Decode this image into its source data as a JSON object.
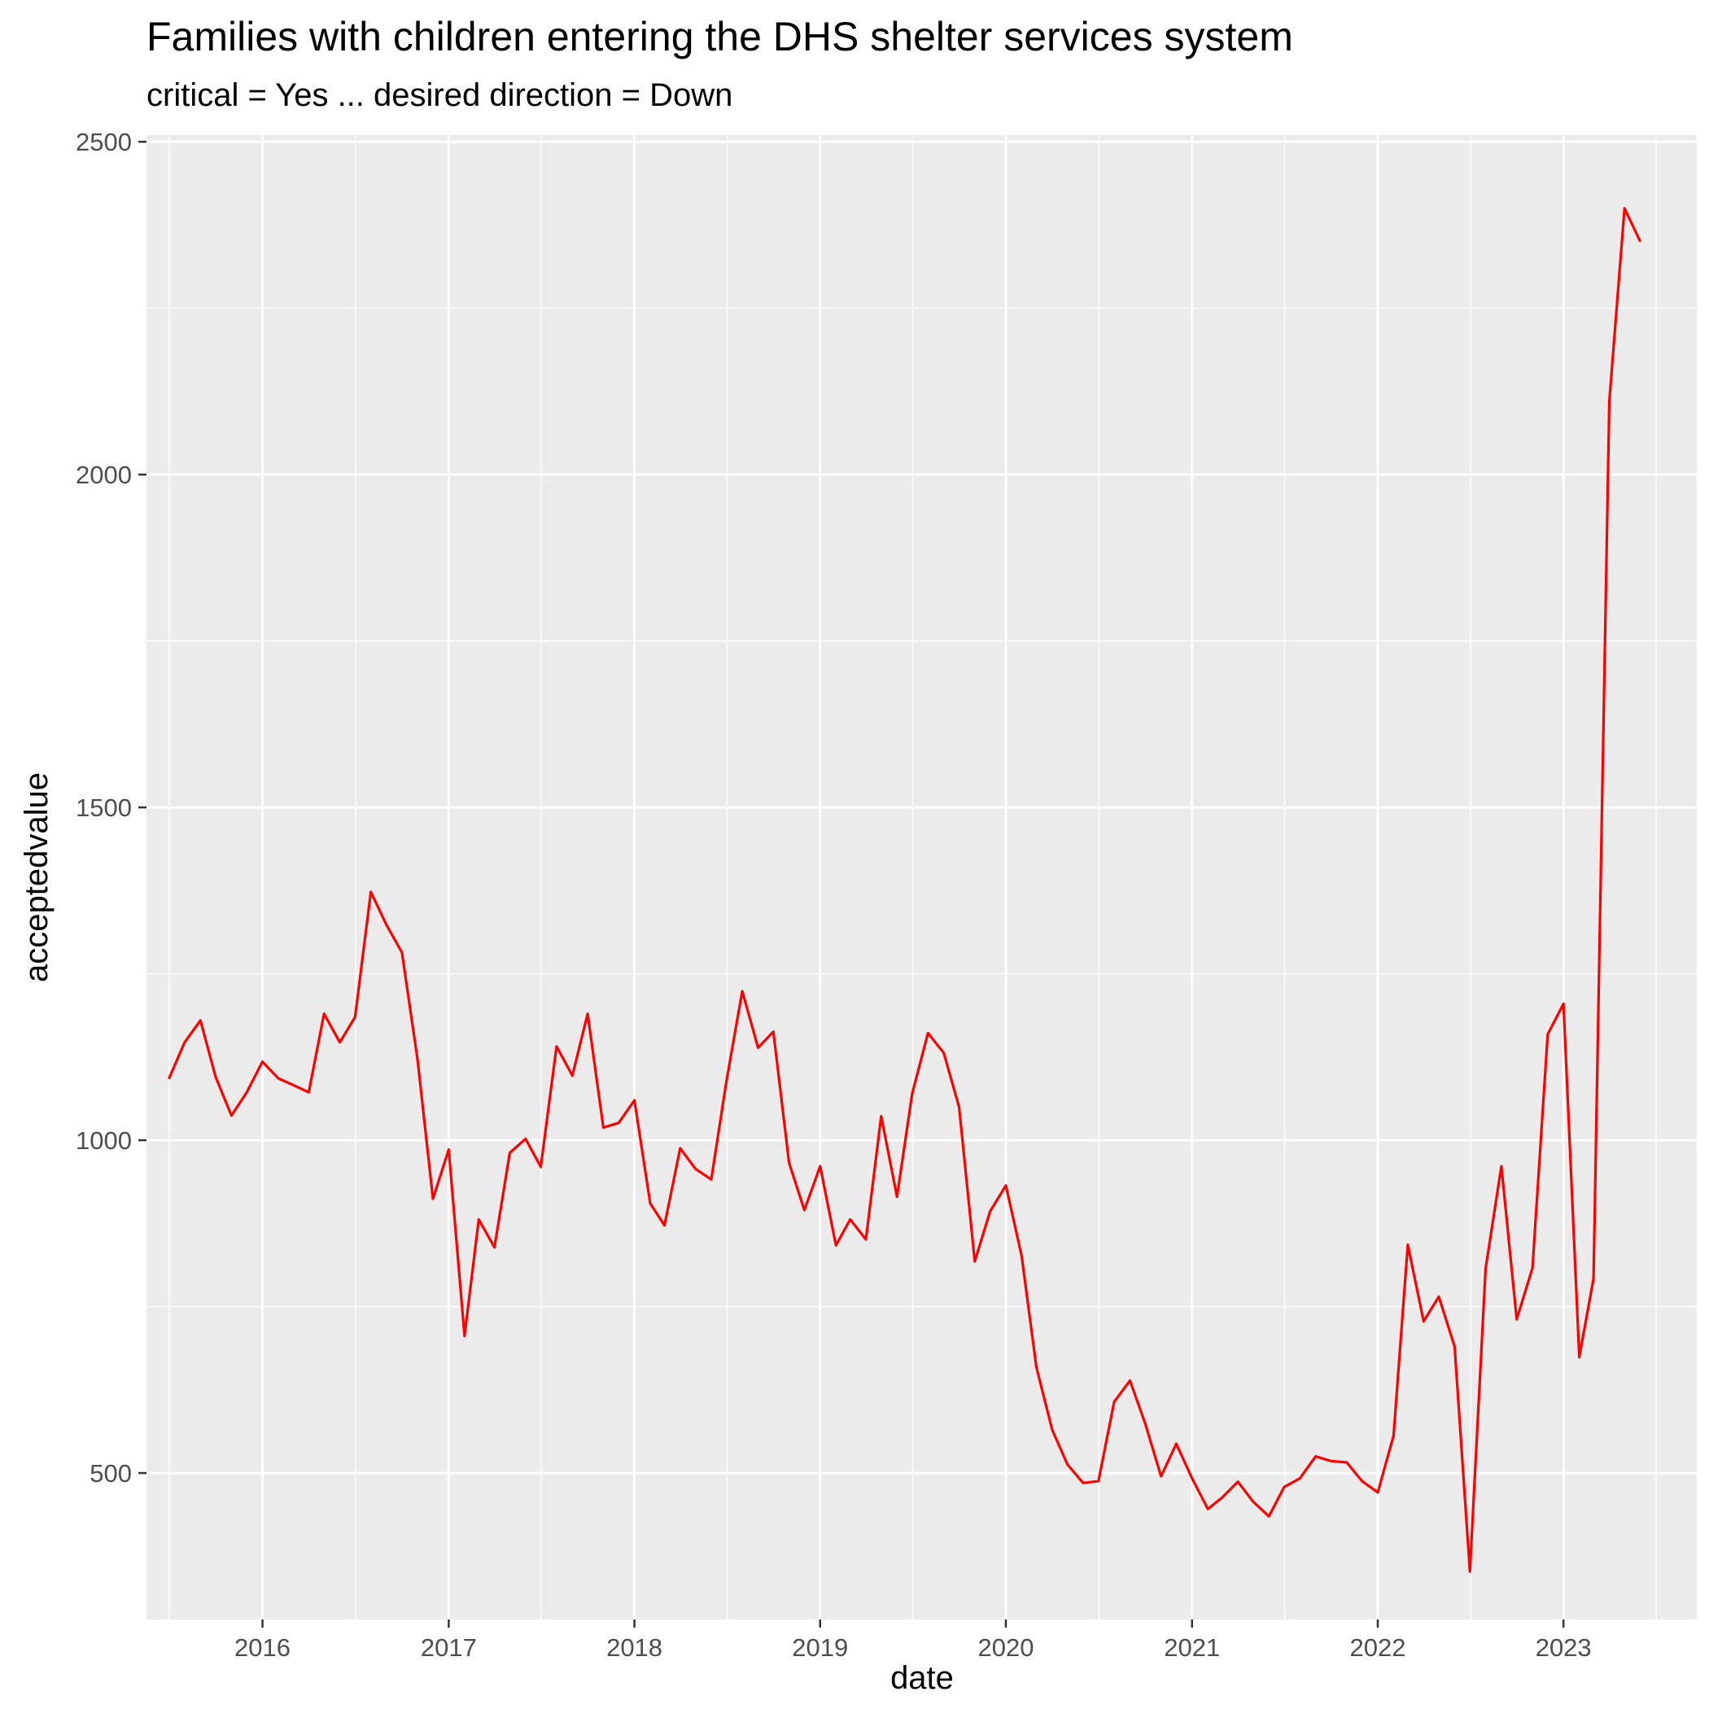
{
  "chart_data": {
    "type": "line",
    "title": "Families with children entering the DHS shelter services system",
    "subtitle": "critical = Yes ... desired direction = Down",
    "xlabel": "date",
    "ylabel": "acceptedvalue",
    "ylim": [
      280,
      2510
    ],
    "xlim": [
      "2015-05-18",
      "2023-09-20"
    ],
    "y_ticks": [
      500,
      1000,
      1500,
      2000,
      2500
    ],
    "y_tick_labels": [
      "500",
      "1000",
      "1500",
      "2000",
      "2500"
    ],
    "x_ticks": [
      "2016-01-01",
      "2017-01-01",
      "2018-01-01",
      "2019-01-01",
      "2020-01-01",
      "2021-01-01",
      "2022-01-01",
      "2023-01-01"
    ],
    "x_tick_labels": [
      "2016",
      "2017",
      "2018",
      "2019",
      "2020",
      "2021",
      "2022",
      "2023"
    ],
    "grid": true,
    "background": "#ebebeb",
    "gridline_color": "#ffffff",
    "line_color": "#ff0000",
    "series": [
      {
        "x": [
          "2015-07-01",
          "2015-08-01",
          "2015-09-01",
          "2015-10-01",
          "2015-11-01",
          "2015-12-01",
          "2016-01-01",
          "2016-02-01",
          "2016-03-01",
          "2016-04-01",
          "2016-05-01",
          "2016-06-01",
          "2016-07-01",
          "2016-08-01",
          "2016-09-01",
          "2016-10-01",
          "2016-11-01",
          "2016-12-01",
          "2017-01-01",
          "2017-02-01",
          "2017-03-01",
          "2017-04-01",
          "2017-05-01",
          "2017-06-01",
          "2017-07-01",
          "2017-08-01",
          "2017-09-01",
          "2017-10-01",
          "2017-11-01",
          "2017-12-01",
          "2018-01-01",
          "2018-02-01",
          "2018-03-01",
          "2018-04-01",
          "2018-05-01",
          "2018-06-01",
          "2018-07-01",
          "2018-08-01",
          "2018-09-01",
          "2018-10-01",
          "2018-11-01",
          "2018-12-01",
          "2019-01-01",
          "2019-02-01",
          "2019-03-01",
          "2019-04-01",
          "2019-05-01",
          "2019-06-01",
          "2019-07-01",
          "2019-08-01",
          "2019-09-01",
          "2019-10-01",
          "2019-11-01",
          "2019-12-01",
          "2020-01-01",
          "2020-02-01",
          "2020-03-01",
          "2020-04-01",
          "2020-05-01",
          "2020-06-01",
          "2020-07-01",
          "2020-08-01",
          "2020-09-01",
          "2020-10-01",
          "2020-11-01",
          "2020-12-01",
          "2021-01-01",
          "2021-02-01",
          "2021-03-01",
          "2021-04-01",
          "2021-05-01",
          "2021-06-01",
          "2021-07-01",
          "2021-08-01",
          "2021-09-01",
          "2021-10-01",
          "2021-11-01",
          "2021-12-01",
          "2022-01-01",
          "2022-02-01",
          "2022-03-01",
          "2022-04-01",
          "2022-05-01",
          "2022-06-01",
          "2022-07-01",
          "2022-08-01",
          "2022-09-01",
          "2022-10-01",
          "2022-11-01",
          "2022-12-01",
          "2023-01-01",
          "2023-02-01",
          "2023-03-01",
          "2023-04-01",
          "2023-05-01",
          "2023-06-01"
        ],
        "values": [
          1092,
          1147,
          1180,
          1095,
          1037,
          1072,
          1118,
          1093,
          1083,
          1072,
          1190,
          1147,
          1185,
          1373,
          1323,
          1282,
          1120,
          912,
          986,
          706,
          881,
          839,
          981,
          1002,
          960,
          1141,
          1097,
          1190,
          1019,
          1026,
          1060,
          905,
          872,
          988,
          957,
          941,
          1089,
          1224,
          1139,
          1163,
          966,
          895,
          961,
          842,
          881,
          851,
          1036,
          915,
          1070,
          1161,
          1131,
          1050,
          818,
          893,
          932,
          826,
          659,
          565,
          513,
          485,
          488,
          607,
          639,
          574,
          495,
          544,
          492,
          446,
          463,
          487,
          457,
          435,
          479,
          492,
          525,
          518,
          516,
          488,
          471,
          556,
          843,
          728,
          765,
          690,
          352,
          807,
          961,
          731,
          808,
          1159,
          1205,
          674,
          792,
          2110,
          2400,
          2350
        ]
      }
    ]
  }
}
